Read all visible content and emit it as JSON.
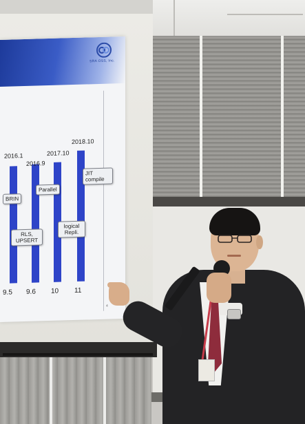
{
  "slide": {
    "logo_text": "SRA OSS, Inc.",
    "year_labels": [
      "2016.1",
      "2016.9",
      "2017.10",
      "2018.10"
    ],
    "version_labels": [
      "9.5",
      "9.6",
      "10",
      "11"
    ],
    "bubbles": [
      "BRIN",
      "Parallel",
      "JIT compile",
      "RLS, UPSERT",
      "logical Repli."
    ],
    "footer_mark": "4"
  },
  "colors": {
    "slide_bar": "#2e44c8",
    "slide_header": "#1d3a9a",
    "suit": "#232325",
    "tie": "#8e2c3c",
    "lanyard": "#c63b4a"
  },
  "icons": [
    "company-logo-icon",
    "microphone-icon",
    "glasses-icon"
  ]
}
